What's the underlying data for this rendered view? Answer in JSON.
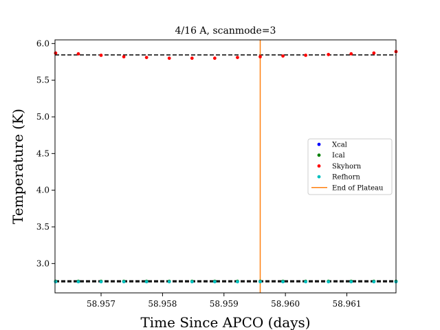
{
  "chart_data": {
    "type": "scatter",
    "title": "4/16 A, scanmode=3",
    "xlabel": "Time Since APCO (days)",
    "ylabel": "Temperature (K)",
    "xlim": [
      58.95625,
      58.9618
    ],
    "ylim": [
      2.6,
      6.05
    ],
    "xticks": [
      58.957,
      58.958,
      58.959,
      58.96,
      58.961
    ],
    "xtick_labels": [
      "58.957",
      "58.958",
      "58.959",
      "58.960",
      "58.961"
    ],
    "yticks": [
      3.0,
      3.5,
      4.0,
      4.5,
      5.0,
      5.5,
      6.0
    ],
    "ytick_labels": [
      "3.0",
      "3.5",
      "4.0",
      "4.5",
      "5.0",
      "5.5",
      "6.0"
    ],
    "grid": false,
    "legend_placement": "center-right",
    "x": [
      58.95626,
      58.95663,
      58.957,
      58.95737,
      58.95774,
      58.95811,
      58.95848,
      58.95885,
      58.95922,
      58.95959,
      58.95996,
      58.96033,
      58.9607,
      58.96107,
      58.96144,
      58.9618
    ],
    "series": [
      {
        "name": "Xcal",
        "color": "#0000ff",
        "marker": "dot",
        "y": [
          2.755,
          2.755,
          2.755,
          2.755,
          2.755,
          2.755,
          2.755,
          2.755,
          2.755,
          2.755,
          2.755,
          2.755,
          2.755,
          2.755,
          2.755,
          2.755
        ]
      },
      {
        "name": "Ical",
        "color": "#008000",
        "marker": "dot",
        "y": [
          2.758,
          2.758,
          2.758,
          2.758,
          2.758,
          2.758,
          2.758,
          2.758,
          2.758,
          2.758,
          2.758,
          2.758,
          2.758,
          2.758,
          2.758,
          2.758
        ]
      },
      {
        "name": "Skyhorn",
        "color": "#ff0000",
        "marker": "dot",
        "y": [
          5.87,
          5.86,
          5.84,
          5.82,
          5.81,
          5.8,
          5.8,
          5.8,
          5.81,
          5.82,
          5.83,
          5.84,
          5.85,
          5.86,
          5.87,
          5.89
        ]
      },
      {
        "name": "Refhorn",
        "color": "#00bfbf",
        "marker": "dot",
        "y": [
          2.752,
          2.752,
          2.752,
          2.752,
          2.752,
          2.752,
          2.752,
          2.752,
          2.752,
          2.752,
          2.752,
          2.752,
          2.752,
          2.752,
          2.752,
          2.752
        ]
      },
      {
        "name": "End of Plateau",
        "color": "#ff7f0e",
        "marker": "vline",
        "x": 58.95959
      }
    ],
    "reference_lines": [
      {
        "y": 5.845,
        "style": "dashed",
        "color": "#000000"
      },
      {
        "y": 2.765,
        "style": "dashed",
        "color": "#000000"
      },
      {
        "y": 2.75,
        "style": "dashed",
        "color": "#000000"
      }
    ]
  }
}
